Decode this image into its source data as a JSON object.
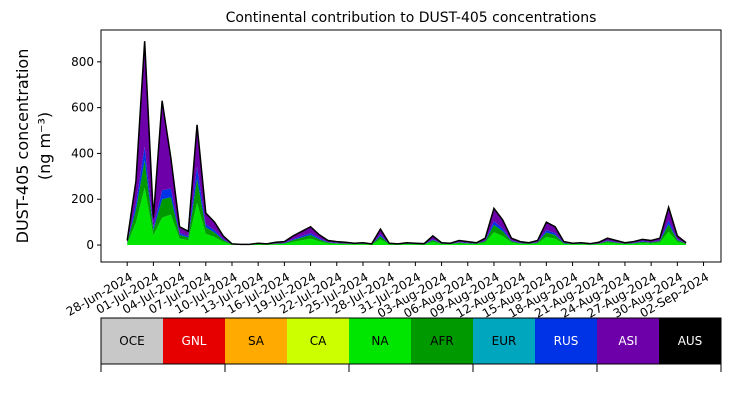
{
  "chart_data": {
    "type": "stacked_area",
    "title": "Continental contribution to DUST-405 concentrations",
    "y_label": [
      "DUST-405 concentration",
      "(ng m⁻³)"
    ],
    "x": [
      "2024-06-28",
      "2024-06-29",
      "2024-06-30",
      "2024-07-01",
      "2024-07-02",
      "2024-07-03",
      "2024-07-04",
      "2024-07-05",
      "2024-07-06",
      "2024-07-07",
      "2024-07-08",
      "2024-07-09",
      "2024-07-10",
      "2024-07-11",
      "2024-07-12",
      "2024-07-13",
      "2024-07-14",
      "2024-07-15",
      "2024-07-16",
      "2024-07-17",
      "2024-07-18",
      "2024-07-19",
      "2024-07-20",
      "2024-07-21",
      "2024-07-22",
      "2024-07-23",
      "2024-07-24",
      "2024-07-25",
      "2024-07-26",
      "2024-07-27",
      "2024-07-28",
      "2024-07-29",
      "2024-07-30",
      "2024-07-31",
      "2024-08-01",
      "2024-08-02",
      "2024-08-03",
      "2024-08-04",
      "2024-08-05",
      "2024-08-06",
      "2024-08-07",
      "2024-08-08",
      "2024-08-09",
      "2024-08-10",
      "2024-08-11",
      "2024-08-12",
      "2024-08-13",
      "2024-08-14",
      "2024-08-15",
      "2024-08-16",
      "2024-08-17",
      "2024-08-18",
      "2024-08-19",
      "2024-08-20",
      "2024-08-21",
      "2024-08-22",
      "2024-08-23",
      "2024-08-24",
      "2024-08-25",
      "2024-08-26",
      "2024-08-27",
      "2024-08-28",
      "2024-08-29",
      "2024-08-30",
      "2024-08-31"
    ],
    "xlim": [
      "2024-06-25",
      "2024-09-04"
    ],
    "xticks": [
      {
        "value": "2024-06-28",
        "label": "28-Jun-2024"
      },
      {
        "value": "2024-07-01",
        "label": "01-Jul-2024"
      },
      {
        "value": "2024-07-04",
        "label": "04-Jul-2024"
      },
      {
        "value": "2024-07-07",
        "label": "07-Jul-2024"
      },
      {
        "value": "2024-07-10",
        "label": "10-Jul-2024"
      },
      {
        "value": "2024-07-13",
        "label": "13-Jul-2024"
      },
      {
        "value": "2024-07-16",
        "label": "16-Jul-2024"
      },
      {
        "value": "2024-07-19",
        "label": "19-Jul-2024"
      },
      {
        "value": "2024-07-22",
        "label": "22-Jul-2024"
      },
      {
        "value": "2024-07-25",
        "label": "25-Jul-2024"
      },
      {
        "value": "2024-07-28",
        "label": "28-Jul-2024"
      },
      {
        "value": "2024-07-31",
        "label": "31-Jul-2024"
      },
      {
        "value": "2024-08-03",
        "label": "03-Aug-2024"
      },
      {
        "value": "2024-08-06",
        "label": "06-Aug-2024"
      },
      {
        "value": "2024-08-09",
        "label": "09-Aug-2024"
      },
      {
        "value": "2024-08-12",
        "label": "12-Aug-2024"
      },
      {
        "value": "2024-08-15",
        "label": "15-Aug-2024"
      },
      {
        "value": "2024-08-18",
        "label": "18-Aug-2024"
      },
      {
        "value": "2024-08-21",
        "label": "21-Aug-2024"
      },
      {
        "value": "2024-08-24",
        "label": "24-Aug-2024"
      },
      {
        "value": "2024-08-27",
        "label": "27-Aug-2024"
      },
      {
        "value": "2024-08-30",
        "label": "30-Aug-2024"
      },
      {
        "value": "2024-09-02",
        "label": "02-Sep-2024"
      }
    ],
    "ylim": [
      -74,
      939
    ],
    "yticks": [
      0,
      200,
      400,
      600,
      800
    ],
    "series": [
      {
        "name": "OCE",
        "color": "#c8c8c8",
        "values": [
          0,
          0,
          0,
          0,
          0,
          0,
          0,
          0,
          0,
          0,
          0,
          0,
          0,
          0,
          0,
          0,
          0,
          0,
          0,
          0,
          0,
          0,
          0,
          0,
          0,
          0,
          0,
          0,
          0,
          0,
          0,
          0,
          0,
          0,
          0,
          0,
          0,
          0,
          0,
          0,
          0,
          0,
          0,
          0,
          0,
          0,
          0,
          0,
          0,
          0,
          0,
          0,
          0,
          0,
          0,
          0,
          0,
          0,
          0,
          0,
          0,
          0,
          0,
          0,
          0
        ]
      },
      {
        "name": "GNL",
        "color": "#e60000",
        "values": [
          0,
          0,
          0,
          0,
          0,
          0,
          0,
          0,
          0,
          0,
          0,
          0,
          0,
          0,
          0,
          0,
          0,
          0,
          0,
          0,
          0,
          0,
          0,
          0,
          0,
          0,
          0,
          0,
          0,
          0,
          0,
          0,
          0,
          0,
          0,
          0,
          0,
          0,
          0,
          0,
          0,
          0,
          0,
          0,
          0,
          0,
          0,
          0,
          0,
          0,
          0,
          0,
          0,
          0,
          0,
          0,
          0,
          0,
          0,
          0,
          0,
          0,
          0,
          0,
          0
        ]
      },
      {
        "name": "SA",
        "color": "#ffaa00",
        "values": [
          0,
          0,
          0,
          0,
          0,
          0,
          0,
          0,
          0,
          0,
          0,
          0,
          0,
          0,
          0,
          0,
          0,
          0,
          0,
          0,
          0,
          0,
          0,
          0,
          0,
          0,
          0,
          0,
          0,
          0,
          0,
          0,
          0,
          0,
          0,
          0,
          0,
          0,
          0,
          0,
          0,
          0,
          0,
          0,
          0,
          0,
          0,
          0,
          0,
          0,
          0,
          0,
          0,
          0,
          0,
          0,
          0,
          0,
          0,
          0,
          0,
          0,
          0,
          0,
          0
        ]
      },
      {
        "name": "CA",
        "color": "#ccff00",
        "values": [
          0,
          0,
          0,
          0,
          0,
          0,
          0,
          0,
          0,
          0,
          0,
          0,
          0,
          0,
          0,
          0,
          0,
          0,
          0,
          0,
          0,
          0,
          0,
          0,
          0,
          0,
          0,
          0,
          0,
          0,
          0,
          0,
          0,
          0,
          0,
          0,
          0,
          0,
          0,
          0,
          0,
          0,
          0,
          0,
          0,
          0,
          0,
          0,
          0,
          0,
          0,
          0,
          0,
          0,
          0,
          0,
          0,
          0,
          0,
          0,
          0,
          0,
          0,
          0,
          0
        ]
      },
      {
        "name": "NA",
        "color": "#00e600",
        "values": [
          7,
          98,
          250,
          42,
          120,
          133,
          28,
          21,
          184,
          49,
          35,
          14,
          2,
          1,
          1,
          3,
          2,
          4,
          5,
          14,
          21,
          28,
          16,
          7,
          5,
          4,
          3,
          4,
          2,
          25,
          3,
          2,
          4,
          3,
          2,
          14,
          4,
          3,
          7,
          5,
          4,
          11,
          56,
          39,
          11,
          5,
          4,
          7,
          35,
          28,
          5,
          3,
          4,
          2,
          4,
          11,
          7,
          4,
          5,
          9,
          7,
          11,
          58,
          14,
          4
        ]
      },
      {
        "name": "AFR",
        "color": "#009a00",
        "values": [
          4,
          56,
          120,
          24,
          80,
          76,
          16,
          12,
          105,
          28,
          20,
          8,
          1,
          1,
          1,
          2,
          1,
          2,
          3,
          8,
          12,
          16,
          9,
          4,
          3,
          2,
          2,
          2,
          1,
          14,
          2,
          1,
          2,
          2,
          1,
          8,
          2,
          2,
          4,
          3,
          2,
          6,
          32,
          22,
          6,
          3,
          2,
          4,
          20,
          16,
          3,
          2,
          2,
          1,
          2,
          6,
          4,
          2,
          3,
          5,
          4,
          6,
          33,
          8,
          2
        ]
      },
      {
        "name": "EUR",
        "color": "#00a5be",
        "values": [
          0,
          0,
          0,
          0,
          0,
          0,
          0,
          0,
          0,
          0,
          0,
          0,
          0,
          0,
          0,
          0,
          0,
          0,
          0,
          0,
          0,
          0,
          0,
          0,
          0,
          0,
          0,
          0,
          0,
          0,
          0,
          0,
          0,
          0,
          0,
          0,
          0,
          0,
          0,
          0,
          0,
          0,
          0,
          0,
          0,
          0,
          0,
          0,
          0,
          0,
          0,
          0,
          0,
          0,
          0,
          0,
          0,
          0,
          0,
          0,
          0,
          0,
          0,
          0,
          0
        ]
      },
      {
        "name": "RUS",
        "color": "#0032e6",
        "values": [
          2,
          28,
          60,
          12,
          40,
          38,
          8,
          6,
          53,
          14,
          10,
          4,
          0,
          0,
          0,
          1,
          0,
          1,
          2,
          4,
          6,
          8,
          5,
          2,
          2,
          1,
          1,
          1,
          0,
          7,
          1,
          0,
          1,
          1,
          1,
          4,
          1,
          1,
          2,
          2,
          1,
          3,
          16,
          11,
          3,
          2,
          1,
          2,
          10,
          8,
          2,
          1,
          1,
          1,
          1,
          3,
          2,
          1,
          2,
          3,
          2,
          3,
          17,
          4,
          1
        ]
      },
      {
        "name": "ASI",
        "color": "#6e00aa",
        "values": [
          7,
          98,
          460,
          42,
          390,
          133,
          28,
          21,
          183,
          49,
          35,
          14,
          2,
          1,
          1,
          2,
          2,
          5,
          5,
          14,
          21,
          28,
          15,
          7,
          5,
          5,
          2,
          3,
          2,
          24,
          2,
          2,
          3,
          2,
          2,
          14,
          3,
          2,
          7,
          5,
          3,
          10,
          56,
          38,
          10,
          5,
          3,
          7,
          35,
          28,
          5,
          2,
          3,
          2,
          5,
          10,
          7,
          3,
          5,
          8,
          7,
          10,
          57,
          14,
          3
        ]
      },
      {
        "name": "AUS",
        "color": "#000000",
        "values": [
          0,
          0,
          0,
          0,
          0,
          0,
          0,
          0,
          0,
          0,
          0,
          0,
          0,
          0,
          0,
          0,
          0,
          0,
          0,
          0,
          0,
          0,
          0,
          0,
          0,
          0,
          0,
          0,
          0,
          0,
          0,
          0,
          0,
          0,
          0,
          0,
          0,
          0,
          0,
          0,
          0,
          0,
          0,
          0,
          0,
          0,
          0,
          0,
          0,
          0,
          0,
          0,
          0,
          0,
          0,
          0,
          0,
          0,
          0,
          0,
          0,
          0,
          0,
          0,
          0
        ]
      }
    ]
  }
}
